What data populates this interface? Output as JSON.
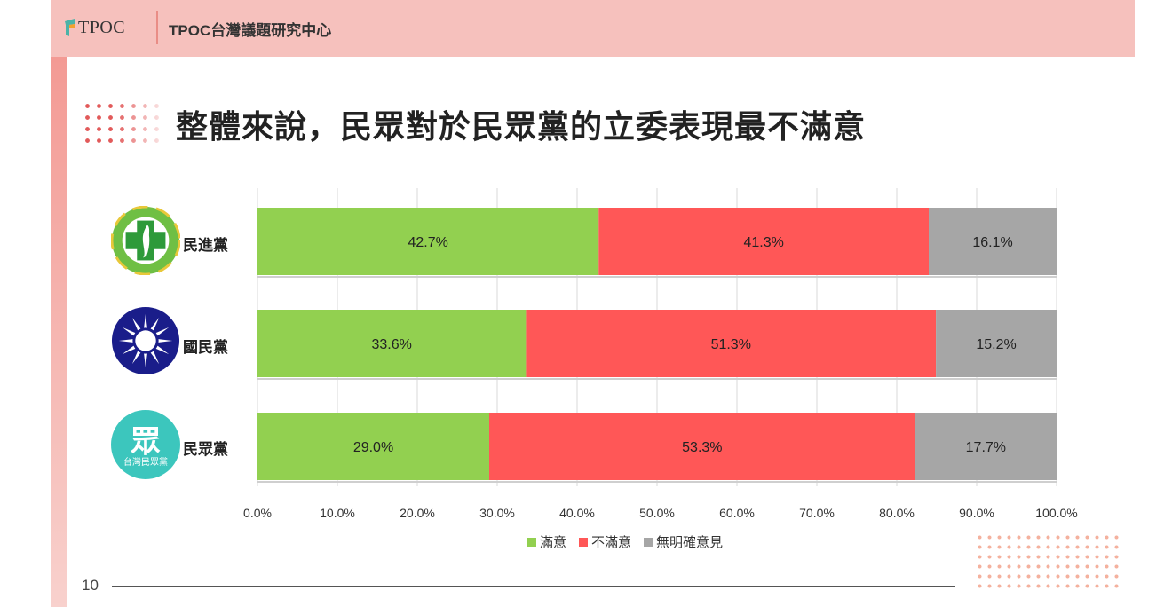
{
  "header": {
    "logo_text": "TPOC",
    "org_name": "TPOC台灣議題研究中心"
  },
  "headline": "整體來說，民眾對於民眾黨的立委表現最不滿意",
  "page_number": "10",
  "party_logos": {
    "dpp_icon": "dpp-emblem-icon",
    "kmt_icon": "kmt-emblem-icon",
    "tpp_icon": "tpp-emblem-icon",
    "tpp_logo_text": "眾",
    "tpp_logo_sub": "台灣民眾黨"
  },
  "chart_data": {
    "type": "bar",
    "orientation": "horizontal",
    "stacked": true,
    "title": "",
    "categories": [
      "民進黨",
      "國民黨",
      "民眾黨"
    ],
    "series": [
      {
        "name": "滿意",
        "color": "#92d050",
        "values": [
          42.7,
          33.6,
          29.0
        ],
        "labels": [
          "42.7%",
          "33.6%",
          "29.0%"
        ]
      },
      {
        "name": "不滿意",
        "color": "#ff5757",
        "values": [
          41.3,
          51.3,
          53.3
        ],
        "labels": [
          "41.3%",
          "51.3%",
          "53.3%"
        ]
      },
      {
        "name": "無明確意見",
        "color": "#a6a6a6",
        "values": [
          16.1,
          15.2,
          17.7
        ],
        "labels": [
          "16.1%",
          "15.2%",
          "17.7%"
        ]
      }
    ],
    "xlim": [
      0,
      100
    ],
    "xticks": [
      "0.0%",
      "10.0%",
      "20.0%",
      "30.0%",
      "40.0%",
      "50.0%",
      "60.0%",
      "70.0%",
      "80.0%",
      "90.0%",
      "100.0%"
    ],
    "grid": true,
    "legend_position": "bottom"
  }
}
